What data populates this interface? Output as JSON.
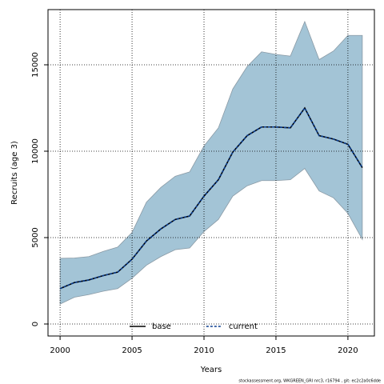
{
  "chart_data": {
    "type": "line",
    "ylabel": "Recruits (age 3)",
    "xlabel": "Years",
    "footnote": "stockassessment.org, WKGREEN_GRI nrc3, r16794 , git: ec2c2a0c6dde",
    "x": [
      2000,
      2001,
      2002,
      2003,
      2004,
      2005,
      2006,
      2007,
      2008,
      2009,
      2010,
      2011,
      2012,
      2013,
      2014,
      2015,
      2016,
      2017,
      2018,
      2019,
      2020,
      2021
    ],
    "band": {
      "color": "#a3c4d6",
      "edge": "#8a9aa5",
      "lower": [
        1150,
        1550,
        1700,
        1900,
        2050,
        2650,
        3400,
        3900,
        4300,
        4400,
        5350,
        6050,
        7400,
        8000,
        8300,
        8300,
        8350,
        9000,
        7700,
        7300,
        6400,
        4900
      ],
      "upper": [
        3800,
        3820,
        3900,
        4200,
        4450,
        5300,
        7050,
        7900,
        8550,
        8800,
        10300,
        11350,
        13600,
        14900,
        15750,
        15600,
        15500,
        17500,
        15300,
        15800,
        16700,
        16700
      ]
    },
    "series": [
      {
        "name": "base",
        "color": "#000000",
        "dashed": false,
        "values": [
          2050,
          2400,
          2550,
          2800,
          3000,
          3750,
          4800,
          5500,
          6050,
          6250,
          7400,
          8350,
          9950,
          10900,
          11400,
          11400,
          11350,
          12500,
          10900,
          10700,
          10400,
          9050
        ]
      },
      {
        "name": "current",
        "color": "#0a3d8f",
        "dashed": true,
        "values": [
          2050,
          2400,
          2550,
          2800,
          3000,
          3750,
          4800,
          5500,
          6050,
          6250,
          7400,
          8350,
          9950,
          10900,
          11400,
          11400,
          11350,
          12500,
          10900,
          10700,
          10400,
          9050
        ]
      }
    ],
    "xlim": [
      1999.16,
      2021.84
    ],
    "xticks": [
      2000,
      2005,
      2010,
      2015,
      2020
    ],
    "ylim": [
      -694,
      18194
    ],
    "yticks": [
      0,
      5000,
      10000,
      15000
    ],
    "grid": true,
    "legend": "bottom"
  }
}
